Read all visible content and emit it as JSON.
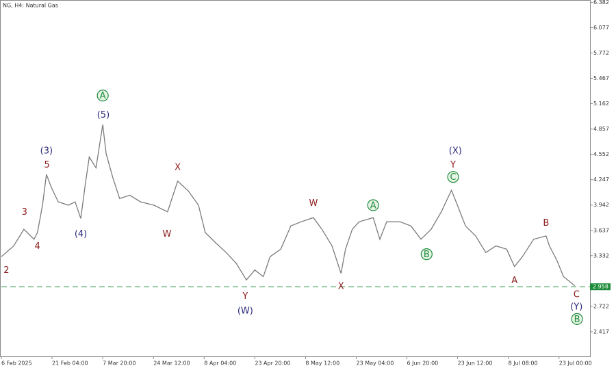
{
  "chart_data": {
    "type": "line",
    "title": "NG, H4:  Natural Gas",
    "series": [
      {
        "name": "NG",
        "color": "#7a7a7a",
        "x": [
          0,
          22,
          40,
          58,
          64,
          73,
          80,
          89,
          101,
          119,
          131,
          141,
          149,
          156,
          168,
          180,
          186,
          198,
          210,
          228,
          247,
          271,
          295,
          313,
          332,
          350,
          362,
          380,
          399,
          417,
          435,
          450,
          465,
          477,
          496,
          514,
          532,
          554,
          569,
          587,
          603,
          611,
          623,
          635,
          660,
          672,
          684,
          708,
          727,
          745,
          763,
          781,
          799,
          812,
          824,
          842,
          860,
          878,
          897,
          911,
          925,
          945,
          967,
          973,
          986,
          998,
          1018
        ],
        "values": [
          3.32,
          3.45,
          3.65,
          3.53,
          3.61,
          3.94,
          4.31,
          4.15,
          3.98,
          3.94,
          3.98,
          3.78,
          4.19,
          4.52,
          4.39,
          4.91,
          4.56,
          4.27,
          4.02,
          4.06,
          3.98,
          3.94,
          3.86,
          4.23,
          4.11,
          3.94,
          3.61,
          3.49,
          3.37,
          3.24,
          3.04,
          3.16,
          3.08,
          3.32,
          3.41,
          3.69,
          3.74,
          3.79,
          3.65,
          3.45,
          3.12,
          3.41,
          3.65,
          3.74,
          3.79,
          3.53,
          3.74,
          3.74,
          3.69,
          3.53,
          3.65,
          3.86,
          4.12,
          3.9,
          3.69,
          3.57,
          3.37,
          3.45,
          3.41,
          3.2,
          3.32,
          3.53,
          3.57,
          3.45,
          3.28,
          3.08,
          2.97
        ]
      }
    ],
    "xlim": [
      0,
      1045
    ],
    "xticks": [
      {
        "value": 0,
        "label": "6 Feb 2025"
      },
      {
        "value": 90,
        "label": "21 Feb 04:00"
      },
      {
        "value": 180,
        "label": "7 Mar 20:00"
      },
      {
        "value": 270,
        "label": "24 Mar 12:00"
      },
      {
        "value": 360,
        "label": "8 Apr 04:00"
      },
      {
        "value": 450,
        "label": "23 Apr 20:00"
      },
      {
        "value": 540,
        "label": "8 May 12:00"
      },
      {
        "value": 630,
        "label": "23 May 04:00"
      },
      {
        "value": 720,
        "label": "6 Jun 20:00"
      },
      {
        "value": 810,
        "label": "23 Jun 12:00"
      },
      {
        "value": 900,
        "label": "8 Jul 08:00"
      },
      {
        "value": 990,
        "label": "23 Jul 00:00"
      }
    ],
    "ylim": [
      2.12,
      6.41
    ],
    "yticks": [
      6.382,
      6.077,
      5.772,
      5.467,
      5.162,
      4.857,
      4.552,
      4.247,
      3.942,
      3.637,
      3.332,
      2.722,
      2.417
    ],
    "price_line": {
      "value": 2.958,
      "color": "#1e8c3a"
    },
    "annotations": [
      {
        "text": "2",
        "x": 9,
        "y": 3.16,
        "color": "#8b1a1a"
      },
      {
        "text": "3",
        "x": 41,
        "y": 3.86,
        "color": "#8b1a1a"
      },
      {
        "text": "4",
        "x": 64,
        "y": 3.45,
        "color": "#8b1a1a"
      },
      {
        "text": "5",
        "x": 81,
        "y": 4.43,
        "color": "#8b1a1a"
      },
      {
        "text": "(3)",
        "x": 80,
        "y": 4.6,
        "color": "#2a2a7a"
      },
      {
        "text": "(4)",
        "x": 141,
        "y": 3.6,
        "color": "#2a2a7a"
      },
      {
        "text": "(5)",
        "x": 181,
        "y": 5.03,
        "color": "#2a2a7a"
      },
      {
        "text": "A",
        "x": 180,
        "y": 5.26,
        "color": "#1e8c3a",
        "circled": true
      },
      {
        "text": "X",
        "x": 313,
        "y": 4.4,
        "color": "#8b1a1a"
      },
      {
        "text": "W",
        "x": 294,
        "y": 3.6,
        "color": "#8b1a1a"
      },
      {
        "text": "Y",
        "x": 433,
        "y": 2.85,
        "color": "#8b1a1a"
      },
      {
        "text": "(W)",
        "x": 433,
        "y": 2.67,
        "color": "#2a2a7a"
      },
      {
        "text": "W",
        "x": 554,
        "y": 3.97,
        "color": "#8b1a1a"
      },
      {
        "text": "X",
        "x": 603,
        "y": 2.97,
        "color": "#8b1a1a"
      },
      {
        "text": "A",
        "x": 660,
        "y": 3.94,
        "color": "#1e8c3a",
        "circled": true
      },
      {
        "text": "B",
        "x": 755,
        "y": 3.35,
        "color": "#1e8c3a",
        "circled": true
      },
      {
        "text": "C",
        "x": 802,
        "y": 4.28,
        "color": "#1e8c3a",
        "circled": true
      },
      {
        "text": "Y",
        "x": 802,
        "y": 4.43,
        "color": "#8b1a1a"
      },
      {
        "text": "(X)",
        "x": 806,
        "y": 4.6,
        "color": "#2a2a7a"
      },
      {
        "text": "A",
        "x": 911,
        "y": 3.04,
        "color": "#8b1a1a"
      },
      {
        "text": "B",
        "x": 967,
        "y": 3.73,
        "color": "#8b1a1a"
      },
      {
        "text": "C",
        "x": 1021,
        "y": 2.87,
        "color": "#8b1a1a"
      },
      {
        "text": "(Y)",
        "x": 1021,
        "y": 2.72,
        "color": "#2a2a7a"
      },
      {
        "text": "B",
        "x": 1022,
        "y": 2.57,
        "color": "#1e8c3a",
        "circled": true
      }
    ]
  }
}
